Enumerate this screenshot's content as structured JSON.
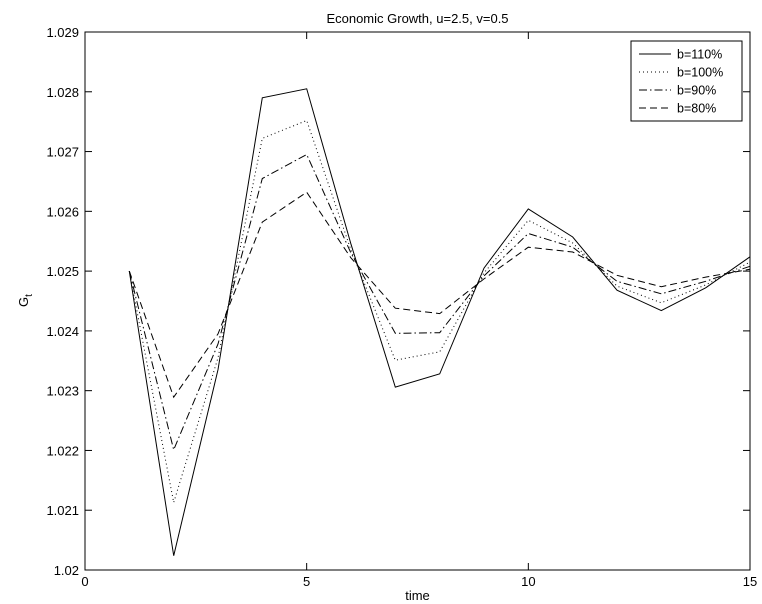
{
  "chart_data": {
    "type": "line",
    "title": "Economic Growth, u=2.5, v=0.5",
    "xlabel": "time",
    "ylabel": "G",
    "ylabel_subscript": "t",
    "xlim": [
      0,
      15
    ],
    "ylim": [
      1.02,
      1.029
    ],
    "xticks": [
      "0",
      "5",
      "10",
      "15"
    ],
    "yticks": [
      "1.02",
      "1.021",
      "1.022",
      "1.023",
      "1.024",
      "1.025",
      "1.026",
      "1.027",
      "1.028",
      "1.029"
    ],
    "grid": false,
    "legend_position": "top-right",
    "x": [
      1,
      2,
      3,
      4,
      5,
      6,
      7,
      8,
      9,
      10,
      11,
      12,
      13,
      14,
      15
    ],
    "series": [
      {
        "name": "b=110%",
        "line_style": "solid",
        "values": [
          1.025,
          1.02024,
          1.02335,
          1.0279,
          1.02805,
          1.02545,
          1.02306,
          1.02328,
          1.02505,
          1.02604,
          1.02557,
          1.02468,
          1.02434,
          1.02472,
          1.02524
        ]
      },
      {
        "name": "b=100%",
        "line_style": "dotted",
        "values": [
          1.025,
          1.02113,
          1.02355,
          1.02722,
          1.02752,
          1.02535,
          1.02351,
          1.02365,
          1.02497,
          1.02585,
          1.02547,
          1.02475,
          1.02447,
          1.02477,
          1.02515
        ]
      },
      {
        "name": "b=90%",
        "line_style": "dashdot",
        "values": [
          1.025,
          1.02201,
          1.02378,
          1.02655,
          1.02695,
          1.0253,
          1.02396,
          1.02397,
          1.02492,
          1.02563,
          1.0254,
          1.02483,
          1.02462,
          1.02483,
          1.02508
        ]
      },
      {
        "name": "b=80%",
        "line_style": "dashed",
        "values": [
          1.025,
          1.02289,
          1.02395,
          1.02582,
          1.02632,
          1.02522,
          1.02438,
          1.02429,
          1.02487,
          1.0254,
          1.02532,
          1.02493,
          1.02474,
          1.0249,
          1.02503
        ]
      }
    ],
    "colors": {
      "lines": "#000000",
      "axes": "#000000",
      "background": "#ffffff"
    }
  }
}
